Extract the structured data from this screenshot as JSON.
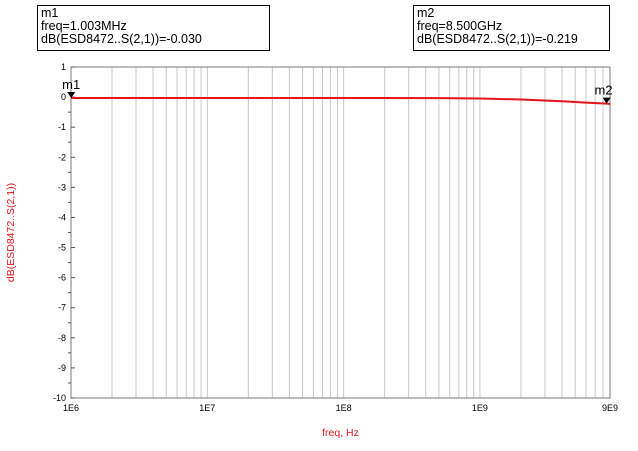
{
  "markers": [
    {
      "name": "m1",
      "freq_text": "freq=1.003MHz",
      "value_text": "dB(ESD8472..S(2,1))=-0.030",
      "x": 1003000,
      "y": -0.03
    },
    {
      "name": "m2",
      "freq_text": "freq=8.500GHz",
      "value_text": "dB(ESD8472..S(2,1))=-0.219",
      "x": 8500000000,
      "y": -0.219
    }
  ],
  "chart_data": {
    "type": "line",
    "xlabel": "freq, Hz",
    "ylabel": "dB(ESD8472..S(2,1))",
    "xscale": "log",
    "xlim": [
      1000000,
      9000000000
    ],
    "ylim": [
      -10,
      1
    ],
    "grid": true,
    "x_tick_labels": [
      "1E6",
      "1E7",
      "1E8",
      "1E9",
      "9E9"
    ],
    "x_tick_values": [
      1000000,
      10000000,
      100000000,
      1000000000,
      9000000000
    ],
    "y_ticks": [
      1,
      0,
      -1,
      -2,
      -3,
      -4,
      -5,
      -6,
      -7,
      -8,
      -9,
      -10
    ],
    "line_color": "#e8141b",
    "series": [
      {
        "x": [
          1000000,
          1003000,
          10000000,
          100000000,
          500000000,
          1000000000,
          2000000000,
          4000000000,
          6000000000,
          8500000000,
          9000000000
        ],
        "y": [
          -0.03,
          -0.03,
          -0.03,
          -0.031,
          -0.034,
          -0.045,
          -0.08,
          -0.14,
          -0.185,
          -0.219,
          -0.23
        ]
      }
    ]
  }
}
